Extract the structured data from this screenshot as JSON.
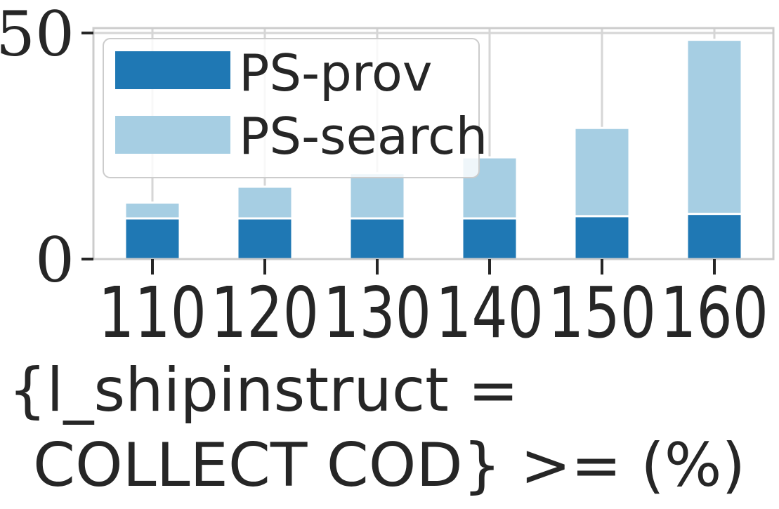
{
  "chart_data": {
    "type": "bar",
    "stacked": true,
    "categories": [
      "110",
      "120",
      "130",
      "140",
      "150",
      "160"
    ],
    "series": [
      {
        "name": "PS-prov",
        "values": [
          9,
          9,
          9,
          9,
          9.5,
          10
        ],
        "color": "#1f78b4"
      },
      {
        "name": "PS-search",
        "values": [
          3.5,
          7,
          10,
          13.5,
          19.5,
          38.5
        ],
        "color": "#a6cee3"
      }
    ],
    "xlabel_lines": [
      "{l_shipinstruct =",
      "COLLECT COD} >= (%)"
    ],
    "ylabel": "",
    "ylim": [
      0,
      50
    ],
    "yticks": [
      "0",
      "50"
    ],
    "grid": true,
    "legend_position": "top-left"
  }
}
